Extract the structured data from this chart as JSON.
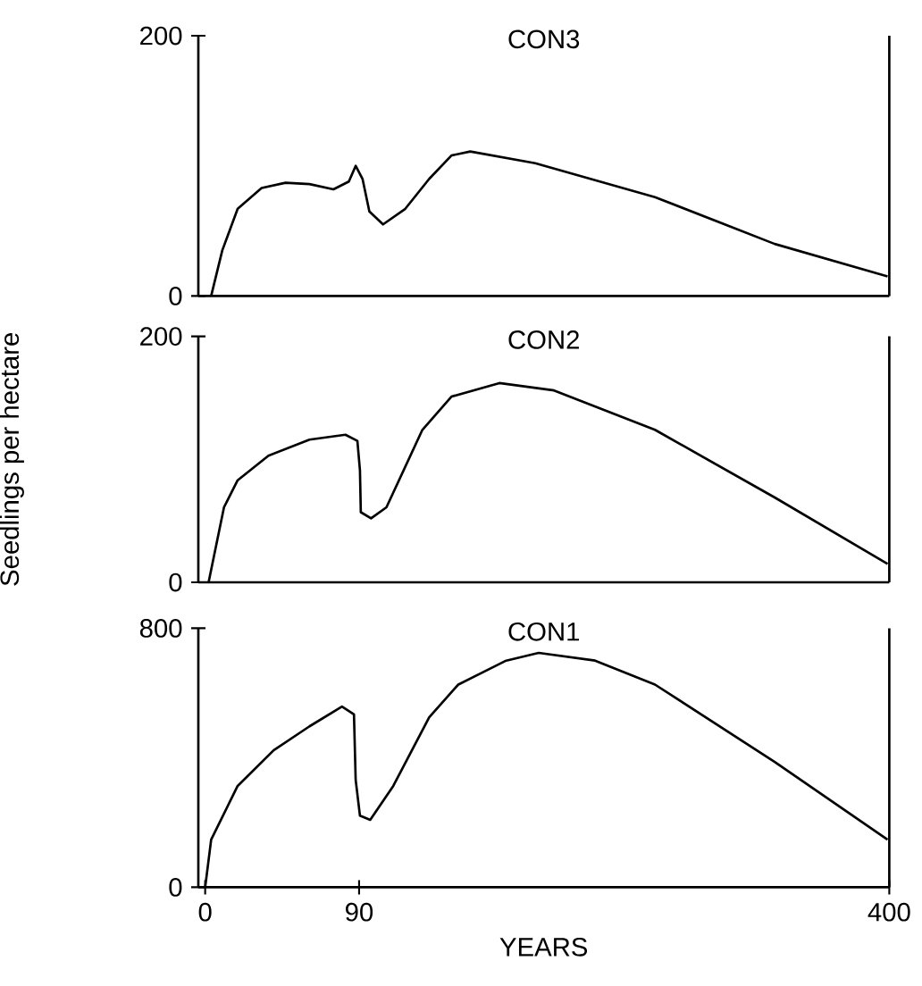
{
  "chart_data": [
    {
      "type": "line",
      "title": "CON3",
      "xlim": [
        -4,
        400
      ],
      "xticks": [
        0,
        90,
        400
      ],
      "ylim": [
        0,
        200
      ],
      "yticks": [
        0,
        200
      ],
      "tick_labels": "y",
      "series": [
        {
          "color": "#000000",
          "x": [
            3.5,
            10,
            19,
            33,
            47,
            61,
            75,
            84,
            88,
            92,
            96,
            104,
            117,
            131,
            144,
            155,
            193,
            263,
            333,
            399
          ],
          "values": [
            0,
            35,
            67,
            83,
            87,
            86,
            82,
            88,
            100,
            90,
            65,
            55,
            67,
            90,
            108,
            111,
            102,
            76,
            40,
            15
          ]
        }
      ]
    },
    {
      "type": "line",
      "title": "CON2",
      "ylabel": "Seedlings per hectare",
      "xlim": [
        -4,
        400
      ],
      "xticks": [
        0,
        90,
        400
      ],
      "ylim": [
        0,
        200
      ],
      "yticks": [
        0,
        200
      ],
      "tick_labels": "y",
      "series": [
        {
          "color": "#000000",
          "x": [
            2,
            11,
            19,
            37,
            61,
            82,
            89,
            90.5,
            91,
            97,
            106,
            127,
            144,
            172,
            204,
            263,
            333,
            399
          ],
          "values": [
            0,
            61,
            83,
            103,
            116,
            120,
            115,
            91,
            57,
            52,
            61,
            124,
            151,
            162,
            156,
            124,
            69,
            15
          ]
        }
      ]
    },
    {
      "type": "line",
      "title": "CON1",
      "xlabel": "YEARS",
      "xlim": [
        -4,
        400
      ],
      "xticks": [
        0,
        90,
        400
      ],
      "ylim": [
        0,
        800
      ],
      "yticks": [
        0,
        800
      ],
      "series": [
        {
          "color": "#000000",
          "x": [
            0,
            3.5,
            19,
            40,
            61,
            80,
            87,
            88,
            90.5,
            96.5,
            110,
            131,
            148,
            176,
            195,
            228,
            263,
            333,
            399
          ],
          "values": [
            0,
            147,
            313,
            423,
            497,
            558,
            534,
            331,
            221,
            208,
            313,
            525,
            626,
            700,
            724,
            700,
            626,
            387,
            147
          ]
        }
      ]
    }
  ]
}
